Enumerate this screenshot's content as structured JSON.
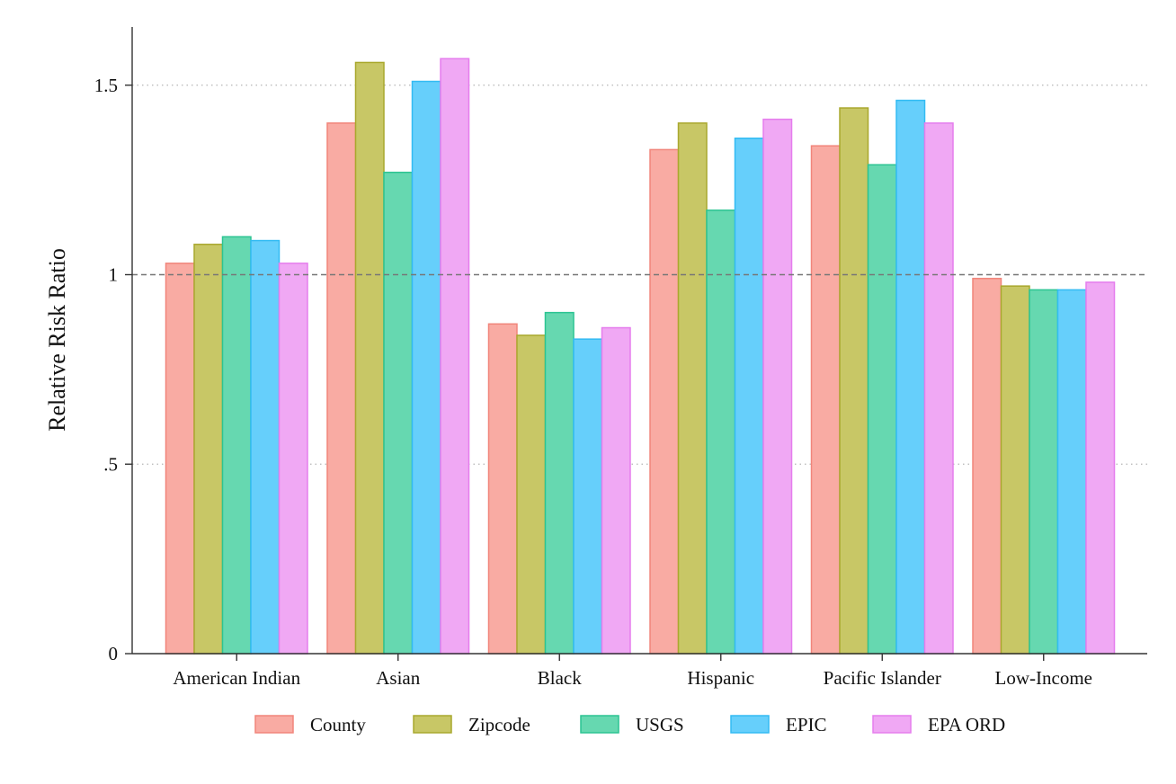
{
  "chart_data": {
    "type": "bar",
    "title": "",
    "xlabel": "",
    "ylabel": "Relative Risk Ratio",
    "ylim": [
      0,
      1.65
    ],
    "yticks": [
      {
        "value": 0,
        "label": "0"
      },
      {
        "value": 0.5,
        "label": ".5"
      },
      {
        "value": 1,
        "label": "1"
      },
      {
        "value": 1.5,
        "label": "1.5"
      }
    ],
    "grid": true,
    "reference_line": 1,
    "legend_position": "bottom",
    "categories": [
      "American Indian",
      "Asian",
      "Black",
      "Hispanic",
      "Pacific Islander",
      "Low-Income"
    ],
    "series": [
      {
        "name": "County",
        "fill": "#f9aba3",
        "stroke": "#f1857b",
        "values": [
          1.03,
          1.4,
          0.87,
          1.33,
          1.34,
          0.99
        ]
      },
      {
        "name": "Zipcode",
        "fill": "#c8c766",
        "stroke": "#a9a82e",
        "values": [
          1.08,
          1.56,
          0.84,
          1.4,
          1.44,
          0.97
        ]
      },
      {
        "name": "USGS",
        "fill": "#66d8b0",
        "stroke": "#2cc492",
        "values": [
          1.1,
          1.27,
          0.9,
          1.17,
          1.29,
          0.96
        ]
      },
      {
        "name": "EPIC",
        "fill": "#66cffb",
        "stroke": "#33bbf3",
        "values": [
          1.09,
          1.51,
          0.83,
          1.36,
          1.46,
          0.96
        ]
      },
      {
        "name": "EPA ORD",
        "fill": "#f0a8f4",
        "stroke": "#e57ded",
        "values": [
          1.03,
          1.57,
          0.86,
          1.41,
          1.4,
          0.98
        ]
      }
    ]
  }
}
